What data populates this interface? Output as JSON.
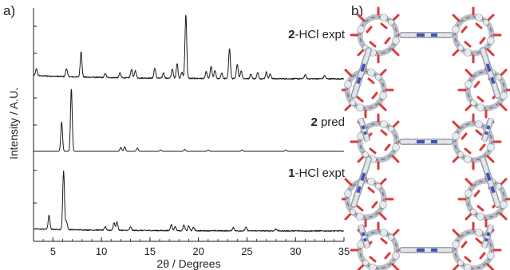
{
  "panel_a_label": "a)",
  "panel_b_label": "b)",
  "chart_data": {
    "type": "line",
    "xlabel": "2θ / Degrees",
    "ylabel": "Intensity / A.U.",
    "xlim": [
      3,
      35
    ],
    "xticks": [
      5,
      10,
      15,
      20,
      25,
      30,
      35
    ],
    "x_tick_labels": [
      "5",
      "10",
      "15",
      "20",
      "25",
      "30",
      "35"
    ],
    "grid": false,
    "legend": "none",
    "colors": {
      "line": "#1a1a1a",
      "background": "#ffffff"
    },
    "series": [
      {
        "name_bold": "2",
        "name_rest": "-HCl expt",
        "baseline": 0.05,
        "noise": 0.035,
        "peaks": [
          [
            3.3,
            0.1
          ],
          [
            6.4,
            0.12
          ],
          [
            7.9,
            0.38
          ],
          [
            10.4,
            0.06
          ],
          [
            11.9,
            0.07
          ],
          [
            13.1,
            0.13
          ],
          [
            13.5,
            0.11
          ],
          [
            15.5,
            0.15
          ],
          [
            16.4,
            0.08
          ],
          [
            17.3,
            0.14
          ],
          [
            17.8,
            0.22
          ],
          [
            18.3,
            0.09
          ],
          [
            18.7,
            0.95
          ],
          [
            20.8,
            0.1
          ],
          [
            21.3,
            0.18
          ],
          [
            21.7,
            0.12
          ],
          [
            22.4,
            0.08
          ],
          [
            23.2,
            0.45
          ],
          [
            24.0,
            0.22
          ],
          [
            24.4,
            0.12
          ],
          [
            25.4,
            0.07
          ],
          [
            26.1,
            0.09
          ],
          [
            27.0,
            0.1
          ],
          [
            27.4,
            0.07
          ],
          [
            31.0,
            0.06
          ],
          [
            33.0,
            0.05
          ]
        ]
      },
      {
        "name_bold": "2",
        "name_rest": " pred",
        "baseline": 0.0,
        "noise": 0.0,
        "peaks": [
          [
            5.9,
            0.45
          ],
          [
            6.9,
            0.95
          ],
          [
            12.0,
            0.06
          ],
          [
            12.4,
            0.07
          ],
          [
            13.7,
            0.05
          ],
          [
            16.1,
            0.02
          ],
          [
            18.6,
            0.03
          ],
          [
            21.0,
            0.02
          ],
          [
            24.5,
            0.02
          ],
          [
            29.0,
            0.02
          ]
        ]
      },
      {
        "name_bold": "1",
        "name_rest": "-HCl expt",
        "baseline": 0.03,
        "noise": 0.03,
        "peaks": [
          [
            4.6,
            0.2
          ],
          [
            6.1,
            0.85
          ],
          [
            6.4,
            0.12
          ],
          [
            10.4,
            0.05
          ],
          [
            11.3,
            0.11
          ],
          [
            11.6,
            0.12
          ],
          [
            13.0,
            0.05
          ],
          [
            17.2,
            0.09
          ],
          [
            17.6,
            0.06
          ],
          [
            18.5,
            0.08
          ],
          [
            19.0,
            0.07
          ],
          [
            19.5,
            0.05
          ],
          [
            23.6,
            0.05
          ],
          [
            24.9,
            0.05
          ],
          [
            28.0,
            0.03
          ]
        ]
      }
    ]
  }
}
